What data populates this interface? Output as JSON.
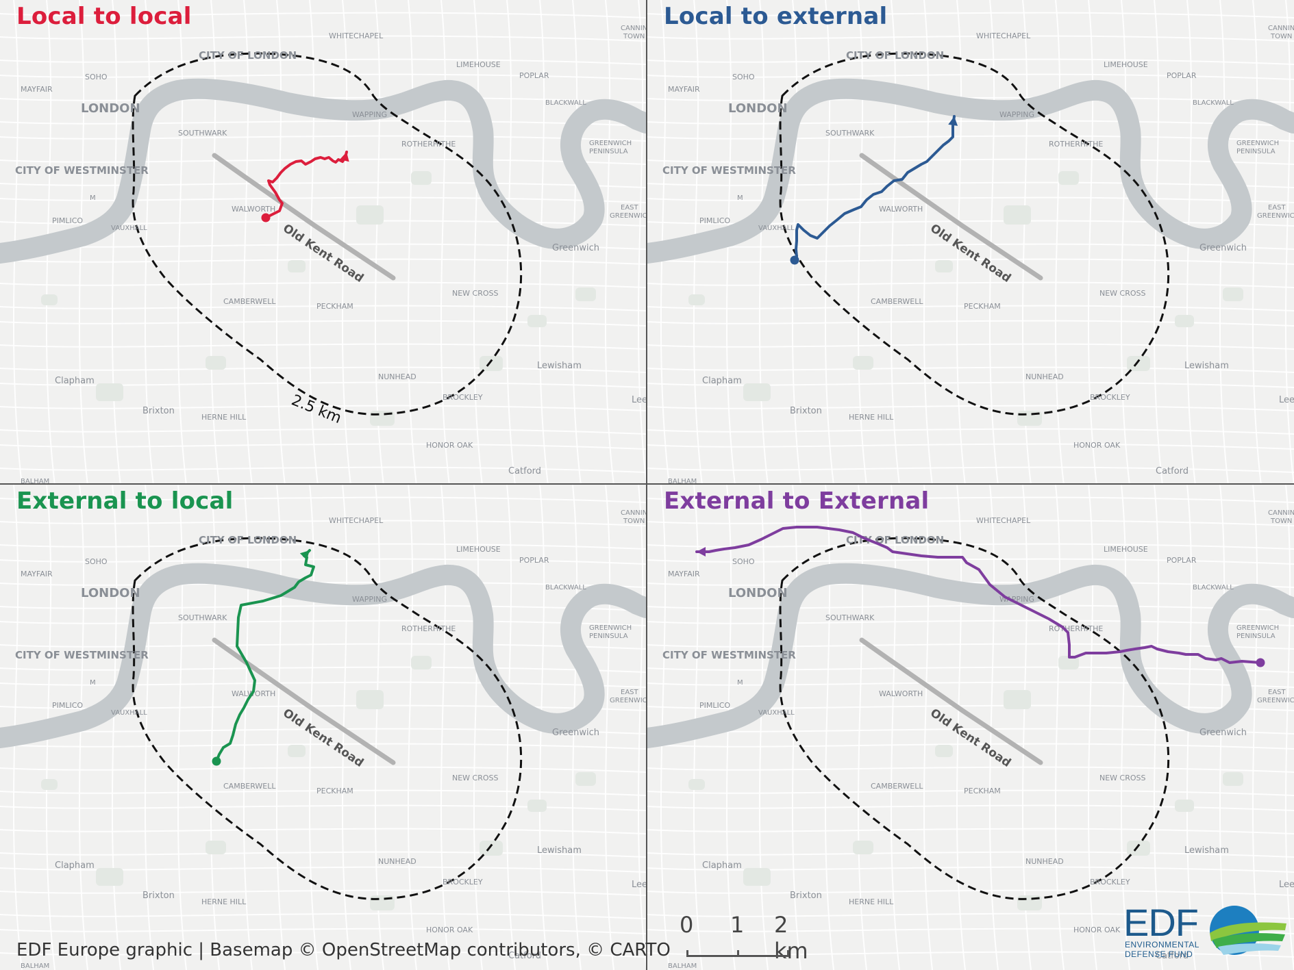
{
  "panels": [
    {
      "title": "Local to local",
      "color": "#dc1e3c",
      "route": "red"
    },
    {
      "title": "Local to external",
      "color": "#2c5a93",
      "route": "blue"
    },
    {
      "title": "External to local",
      "color": "#1a9450",
      "route": "green"
    },
    {
      "title": "External to External",
      "color": "#7e3d9e",
      "route": "purple"
    }
  ],
  "map_labels": {
    "city_of_london": "CITY OF LONDON",
    "whitechapel": "WHITECHAPEL",
    "limehouse": "LIMEHOUSE",
    "poplar": "POPLAR",
    "soho": "SOHO",
    "mayfair": "MAYFAIR",
    "london": "LONDON",
    "wapping": "WAPPING",
    "blackwall": "BLACKWALL",
    "southwark": "SOUTHWARK",
    "rotherhithe": "ROTHERHITHE",
    "greenwich_peninsula_1": "GREENWICH",
    "greenwich_peninsula_2": "PENINSULA",
    "westminster": "CITY OF WESTMINSTER",
    "pimlico": "PIMLICO",
    "walworth": "WALWORTH",
    "vauxhall": "VAUXHALL",
    "east_greenwich_1": "EAST",
    "east_greenwich_2": "GREENWICH",
    "greenwich": "Greenwich",
    "old_kent_road": "Old Kent Road",
    "new_cross": "NEW CROSS",
    "camberwell": "CAMBERWELL",
    "peckham": "PECKHAM",
    "lewisham": "Lewisham",
    "clapham": "Clapham",
    "nunhead": "NUNHEAD",
    "brixton": "Brixton",
    "herne_hill": "HERNE HILL",
    "brockley": "BROCKLEY",
    "honor_oak": "HONOR OAK",
    "catford": "Catford",
    "canning_town_1": "CANNIN",
    "canning_town_2": "TOWN",
    "lee": "Lee",
    "balham": "BALHAM",
    "m": "M"
  },
  "radius_label": "2.5 km",
  "credit": "EDF Europe graphic | Basemap © OpenStreetMap contributors, © CARTO",
  "scale": {
    "tick0": "0",
    "tick1": "1",
    "tick2": "2 km"
  },
  "logo": {
    "name": "EDF",
    "line1": "ENVIRONMENTAL",
    "line2": "DEFENSE FUND"
  }
}
